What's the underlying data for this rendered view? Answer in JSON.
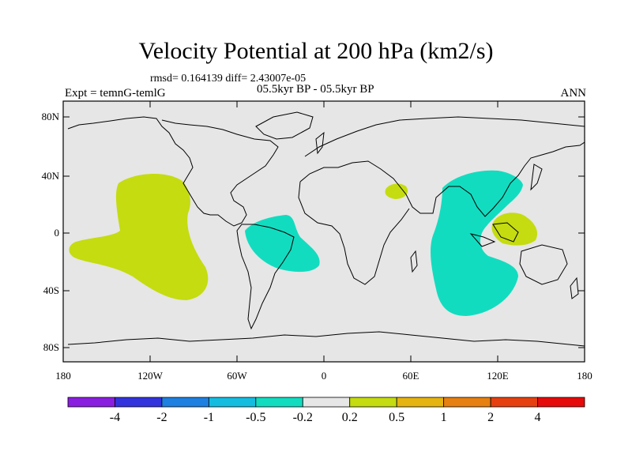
{
  "title": "Velocity Potential at 200 hPa (km2/s)",
  "stats_line": "rmsd= 0.164139 diff= 2.43007e-05",
  "experiment": "Expt = temnG-temlG",
  "period": "05.5kyr BP - 05.5kyr BP",
  "season": "ANN",
  "lat_labels": [
    "80N",
    "40N",
    "0",
    "40S",
    "80S"
  ],
  "lon_labels": [
    "180",
    "120W",
    "60W",
    "0",
    "60E",
    "120E",
    "180"
  ],
  "colorbar": {
    "labels": [
      "-4",
      "-2",
      "-1",
      "-0.5",
      "-0.2",
      "0.2",
      "0.5",
      "1",
      "2",
      "4"
    ],
    "colors": [
      "#8a1ee0",
      "#3333dd",
      "#1e80e0",
      "#14bde0",
      "#12dcc0",
      "#e6e6e6",
      "#c4dc10",
      "#e6b410",
      "#e68010",
      "#e64010",
      "#e60a0a"
    ]
  },
  "map": {
    "background_color": "#e6e6e6",
    "regions": [
      {
        "name": "pacific-positive-anomaly",
        "category": "0.2 to 0.5",
        "color": "#c4dc10"
      },
      {
        "name": "atlantic-negative-anomaly",
        "category": "-0.5 to -0.2",
        "color": "#12dcc0"
      },
      {
        "name": "indian-ocean-negative-anomaly",
        "category": "-0.5 to -0.2",
        "color": "#12dcc0"
      },
      {
        "name": "arabia-positive-anomaly",
        "category": "0.2 to 0.5",
        "color": "#c4dc10"
      },
      {
        "name": "maritime-continent-positive-anomaly",
        "category": "0.2 to 0.5",
        "color": "#c4dc10"
      }
    ]
  }
}
